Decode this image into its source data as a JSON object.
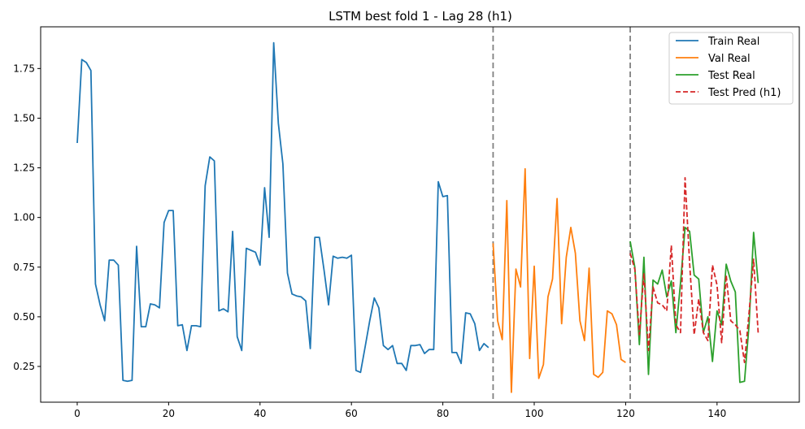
{
  "chart_data": {
    "type": "line",
    "title": "LSTM best fold 1 - Lag 28 (h1)",
    "xlabel": "",
    "ylabel": "",
    "xlim": [
      -8,
      158
    ],
    "ylim": [
      0.07,
      1.96
    ],
    "x_ticks": [
      0,
      20,
      40,
      60,
      80,
      100,
      120,
      140
    ],
    "y_ticks": [
      0.25,
      0.5,
      0.75,
      1.0,
      1.25,
      1.5,
      1.75
    ],
    "y_tick_labels": [
      "0.25",
      "0.50",
      "0.75",
      "1.00",
      "1.25",
      "1.50",
      "1.75"
    ],
    "grid": false,
    "legend_position": "top-right",
    "vlines": [
      {
        "x": 91,
        "color": "#808080",
        "style": "dashed"
      },
      {
        "x": 121,
        "color": "#808080",
        "style": "dashed"
      }
    ],
    "series": [
      {
        "name": "Train Real",
        "color": "#1f77b4",
        "style": "solid",
        "x_start": 0,
        "values": [
          1.375,
          1.795,
          1.78,
          1.74,
          0.665,
          0.56,
          0.48,
          0.785,
          0.785,
          0.76,
          0.18,
          0.175,
          0.18,
          0.855,
          0.45,
          0.45,
          0.565,
          0.56,
          0.545,
          0.975,
          1.035,
          1.035,
          0.455,
          0.46,
          0.33,
          0.455,
          0.455,
          0.45,
          1.16,
          1.305,
          1.285,
          0.53,
          0.54,
          0.525,
          0.93,
          0.4,
          0.33,
          0.845,
          0.835,
          0.825,
          0.76,
          1.15,
          0.9,
          1.88,
          1.475,
          1.27,
          0.72,
          0.615,
          0.605,
          0.6,
          0.58,
          0.34,
          0.9,
          0.9,
          0.735,
          0.56,
          0.805,
          0.795,
          0.8,
          0.795,
          0.81,
          0.23,
          0.22,
          0.35,
          0.48,
          0.595,
          0.545,
          0.355,
          0.335,
          0.355,
          0.265,
          0.265,
          0.23,
          0.355,
          0.355,
          0.36,
          0.315,
          0.335,
          0.335,
          1.18,
          1.105,
          1.11,
          0.32,
          0.32,
          0.265,
          0.52,
          0.515,
          0.465,
          0.33,
          0.365,
          0.345
        ]
      },
      {
        "name": "Val Real",
        "color": "#ff7f0e",
        "style": "solid",
        "x_start": 91,
        "values": [
          0.87,
          0.48,
          0.385,
          1.085,
          0.12,
          0.74,
          0.65,
          1.245,
          0.29,
          0.755,
          0.19,
          0.26,
          0.6,
          0.69,
          1.095,
          0.465,
          0.8,
          0.95,
          0.82,
          0.48,
          0.38,
          0.745,
          0.21,
          0.195,
          0.22,
          0.53,
          0.515,
          0.46,
          0.285,
          0.27
        ]
      },
      {
        "name": "Test Real",
        "color": "#2ca02c",
        "style": "solid",
        "x_start": 121,
        "values": [
          0.88,
          0.75,
          0.36,
          0.8,
          0.21,
          0.685,
          0.665,
          0.735,
          0.6,
          0.68,
          0.42,
          0.67,
          0.95,
          0.93,
          0.71,
          0.69,
          0.42,
          0.5,
          0.275,
          0.53,
          0.46,
          0.765,
          0.68,
          0.625,
          0.17,
          0.175,
          0.46,
          0.925,
          0.67
        ]
      },
      {
        "name": "Test Pred (h1)",
        "color": "#d62728",
        "style": "dashed",
        "x_start": 121,
        "values": [
          0.82,
          0.74,
          0.41,
          0.72,
          0.33,
          0.65,
          0.57,
          0.56,
          0.53,
          0.86,
          0.46,
          0.42,
          1.2,
          0.77,
          0.41,
          0.59,
          0.42,
          0.38,
          0.76,
          0.66,
          0.37,
          0.71,
          0.48,
          0.46,
          0.43,
          0.27,
          0.52,
          0.79,
          0.42
        ]
      }
    ]
  }
}
